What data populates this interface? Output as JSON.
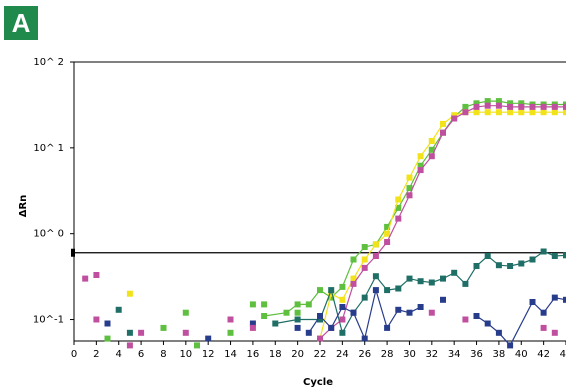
{
  "panel_label": "A",
  "colors": {
    "green": "#5fbf3f",
    "yellow": "#f2e21a",
    "magenta": "#c0509f",
    "teal": "#1f6f66",
    "navy": "#283c8c",
    "badge": "#1f8a4c"
  },
  "chart_data": {
    "type": "line",
    "xlabel": "Cycle",
    "ylabel": "ΔRn",
    "xlim": [
      0,
      44
    ],
    "ylim_log10": [
      -1.25,
      2
    ],
    "y_scale": "log",
    "x_ticks": [
      0,
      2,
      4,
      6,
      8,
      10,
      12,
      14,
      16,
      18,
      20,
      22,
      24,
      26,
      28,
      30,
      32,
      34,
      36,
      38,
      40,
      42,
      44
    ],
    "x_tick_labels": [
      "0",
      "2",
      "4",
      "6",
      "8",
      "10",
      "12",
      "14",
      "16",
      "18",
      "20",
      "22",
      "24",
      "26",
      "28",
      "30",
      "32",
      "34",
      "36",
      "38",
      "40",
      "42",
      "44"
    ],
    "y_ticks": [
      {
        "value": 100,
        "label": "10^ 2"
      },
      {
        "value": 10,
        "label": "10^ 1"
      },
      {
        "value": 1,
        "label": "10^ 0"
      },
      {
        "value": 0.1,
        "label": "10^-1"
      }
    ],
    "threshold": 0.6,
    "series": [
      {
        "color": "#5fbf3f",
        "connected": true,
        "x": [
          17,
          19,
          20,
          21,
          22,
          23,
          24,
          25,
          26,
          27,
          28,
          29,
          30,
          31,
          32,
          33,
          34,
          35,
          36,
          37,
          38,
          39,
          40,
          41,
          42,
          43,
          44
        ],
        "y": [
          0.11,
          0.12,
          0.15,
          0.15,
          0.22,
          0.18,
          0.24,
          0.5,
          0.7,
          0.75,
          1.2,
          2.0,
          3.4,
          6.2,
          9.5,
          15,
          23,
          30,
          33,
          35,
          35,
          33,
          33,
          32,
          32,
          32,
          32
        ]
      },
      {
        "color": "#f2e21a",
        "connected": true,
        "x": [
          22,
          23,
          24,
          25,
          26,
          27,
          28,
          29,
          30,
          31,
          32,
          33,
          34,
          35,
          36,
          37,
          38,
          39,
          40,
          41,
          42,
          43,
          44
        ],
        "y": [
          0.06,
          0.2,
          0.17,
          0.3,
          0.5,
          0.75,
          1.0,
          2.5,
          4.5,
          8,
          12,
          19,
          24,
          26,
          26,
          26,
          26,
          26,
          26,
          26,
          26,
          26,
          26
        ]
      },
      {
        "color": "#c0509f",
        "connected": true,
        "x": [
          22,
          23,
          24,
          25,
          26,
          27,
          28,
          29,
          30,
          31,
          32,
          33,
          34,
          35,
          36,
          37,
          38,
          39,
          40,
          41,
          42,
          43,
          44
        ],
        "y": [
          0.06,
          0.08,
          0.1,
          0.26,
          0.4,
          0.55,
          0.8,
          1.5,
          2.8,
          5.5,
          8,
          15,
          22,
          26,
          30,
          31,
          31,
          30,
          30,
          30,
          30,
          30,
          30
        ]
      },
      {
        "color": "#1f6f66",
        "connected": true,
        "x": [
          18,
          20,
          22,
          23,
          24,
          25,
          26,
          27,
          28,
          29,
          30,
          31,
          32,
          33,
          34,
          35,
          36,
          37,
          38,
          39,
          40,
          41,
          42,
          43,
          44
        ],
        "y": [
          0.09,
          0.1,
          0.1,
          0.22,
          0.07,
          0.12,
          0.18,
          0.32,
          0.22,
          0.23,
          0.3,
          0.28,
          0.27,
          0.3,
          0.35,
          0.26,
          0.42,
          0.55,
          0.43,
          0.42,
          0.45,
          0.5,
          0.62,
          0.55,
          0.56
        ]
      },
      {
        "color": "#283c8c",
        "connected": true,
        "x": [
          21,
          22,
          23,
          24,
          25,
          26,
          27,
          28,
          29,
          30,
          31
        ],
        "y": [
          0.07,
          0.11,
          0.08,
          0.14,
          0.12,
          0.06,
          0.22,
          0.08,
          0.13,
          0.12,
          0.14
        ]
      },
      {
        "color": "#283c8c",
        "connected": true,
        "x": [
          36,
          37,
          38,
          39,
          41,
          42,
          43,
          44
        ],
        "y": [
          0.11,
          0.09,
          0.07,
          0.05,
          0.16,
          0.12,
          0.18,
          0.17
        ]
      },
      {
        "color": "#283c8c",
        "connected": false,
        "x": [
          3,
          12,
          16,
          20,
          33
        ],
        "y": [
          0.09,
          0.06,
          0.09,
          0.08,
          0.17
        ]
      },
      {
        "color": "#c0509f",
        "connected": false,
        "x": [
          1,
          2,
          2,
          5,
          6,
          10,
          14,
          16,
          32,
          35,
          42,
          43
        ],
        "y": [
          0.3,
          0.33,
          0.1,
          0.05,
          0.07,
          0.07,
          0.1,
          0.08,
          0.12,
          0.1,
          0.08,
          0.07
        ]
      },
      {
        "color": "#5fbf3f",
        "connected": false,
        "x": [
          3,
          8,
          10,
          11,
          14,
          16,
          17,
          20
        ],
        "y": [
          0.06,
          0.08,
          0.12,
          0.05,
          0.07,
          0.15,
          0.15,
          0.12
        ]
      },
      {
        "color": "#f2e21a",
        "connected": false,
        "x": [
          5
        ],
        "y": [
          0.2
        ]
      },
      {
        "color": "#1f6f66",
        "connected": false,
        "x": [
          4,
          5
        ],
        "y": [
          0.13,
          0.07
        ]
      }
    ]
  }
}
